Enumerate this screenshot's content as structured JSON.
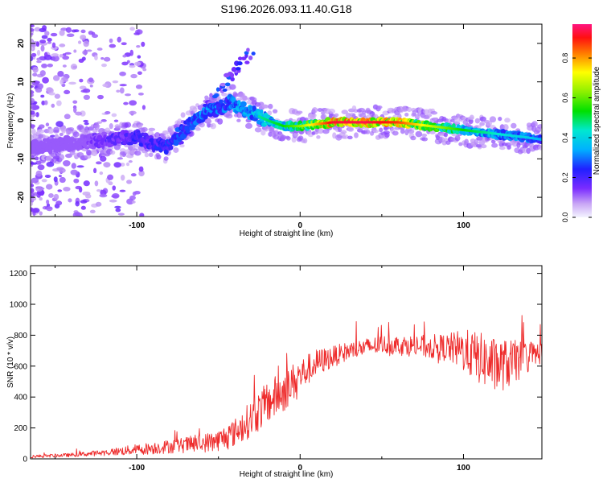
{
  "title": "S196.2026.093.11.40.G18",
  "chart_data": [
    {
      "type": "heatmap",
      "xlabel": "Height of straight line (km)",
      "ylabel": "Frequency (Hz)",
      "xlim": [
        -165,
        148
      ],
      "ylim": [
        -25,
        25
      ],
      "xticks": [
        -100,
        0,
        100
      ],
      "yticks": [
        -20,
        -10,
        0,
        10,
        20
      ],
      "colorbar": {
        "label": "Normalized spectral amplitude",
        "range": [
          0,
          0.97
        ],
        "ticks": [
          0.0,
          0.2,
          0.4,
          0.6,
          0.8
        ]
      },
      "ridge": {
        "x": [
          -165,
          -140,
          -120,
          -100,
          -90,
          -82,
          -70,
          -60,
          -50,
          -42,
          -38,
          -30,
          -20,
          -10,
          0,
          10,
          20,
          40,
          60,
          80,
          100,
          120,
          140,
          148
        ],
        "y": [
          -7,
          -6,
          -5,
          -4.5,
          -6,
          -7,
          -2,
          1.5,
          3,
          5,
          3.5,
          2,
          0,
          -1.5,
          -1.5,
          -1,
          -0.5,
          -0.5,
          -0.5,
          -1.5,
          -2.5,
          -3.5,
          -4.5,
          -5
        ],
        "amplitude": [
          0.05,
          0.15,
          0.25,
          0.3,
          0.3,
          0.35,
          0.35,
          0.4,
          0.4,
          0.4,
          0.45,
          0.45,
          0.5,
          0.55,
          0.65,
          0.8,
          0.95,
          0.97,
          0.9,
          0.7,
          0.55,
          0.45,
          0.4,
          0.35
        ]
      },
      "streak": {
        "x": [
          -75,
          -30
        ],
        "y": [
          -6,
          18
        ]
      }
    },
    {
      "type": "line",
      "xlabel": "Height of straight line (km)",
      "ylabel": "SNR (10 * v/v)",
      "xlim": [
        -165,
        148
      ],
      "ylim": [
        0,
        1250
      ],
      "xticks": [
        -100,
        0,
        100
      ],
      "yticks": [
        0,
        200,
        400,
        600,
        800,
        1000,
        1200
      ],
      "series": [
        {
          "name": "SNR",
          "color": "#ee2b2b",
          "envelope_x": [
            -165,
            -140,
            -120,
            -100,
            -80,
            -60,
            -50,
            -40,
            -30,
            -20,
            -10,
            0,
            10,
            20,
            30,
            50,
            70,
            90,
            100,
            110,
            120,
            130,
            140,
            148
          ],
          "envelope_y": [
            15,
            25,
            40,
            60,
            80,
            100,
            120,
            170,
            260,
            360,
            440,
            540,
            620,
            660,
            700,
            740,
            730,
            720,
            700,
            650,
            600,
            620,
            660,
            690
          ],
          "noise_y": [
            10,
            12,
            20,
            35,
            45,
            60,
            70,
            90,
            120,
            140,
            140,
            110,
            90,
            70,
            60,
            60,
            70,
            90,
            140,
            170,
            180,
            150,
            100,
            70
          ]
        }
      ]
    }
  ]
}
